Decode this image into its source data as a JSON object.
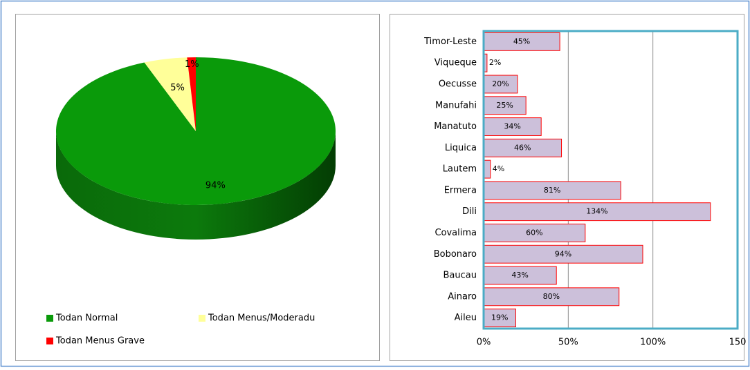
{
  "chart_data": [
    {
      "type": "pie",
      "categories": [
        "Todan Normal",
        "Todan Menus/Moderadu",
        "Todan Menus Grave"
      ],
      "values": [
        94,
        5,
        1
      ],
      "value_labels": [
        "94%",
        "5%",
        "1%"
      ],
      "colors": [
        "#0a9a0a",
        "#ffff99",
        "#ff0000"
      ],
      "legend": "bottom"
    },
    {
      "type": "barh",
      "categories": [
        "Timor-Leste",
        "Viqueque",
        "Oecusse",
        "Manufahi",
        "Manatuto",
        "Liquica",
        "Lautem",
        "Ermera",
        "Dili",
        "Covalima",
        "Bobonaro",
        "Baucau",
        "Ainaro",
        "Aileu"
      ],
      "values": [
        45,
        2,
        20,
        25,
        34,
        46,
        4,
        81,
        134,
        60,
        94,
        43,
        80,
        19
      ],
      "value_labels": [
        "45%",
        "2%",
        "20%",
        "25%",
        "34%",
        "46%",
        "4%",
        "81%",
        "134%",
        "60%",
        "94%",
        "43%",
        "80%",
        "19%"
      ],
      "color": "#ccc0da",
      "edge_color": "#ff0000",
      "xlim": [
        0,
        150
      ],
      "xticks": [
        {
          "value": 0,
          "label": "0%"
        },
        {
          "value": 50,
          "label": "50%"
        },
        {
          "value": 100,
          "label": "100%"
        },
        150
      ],
      "grid": true
    }
  ]
}
